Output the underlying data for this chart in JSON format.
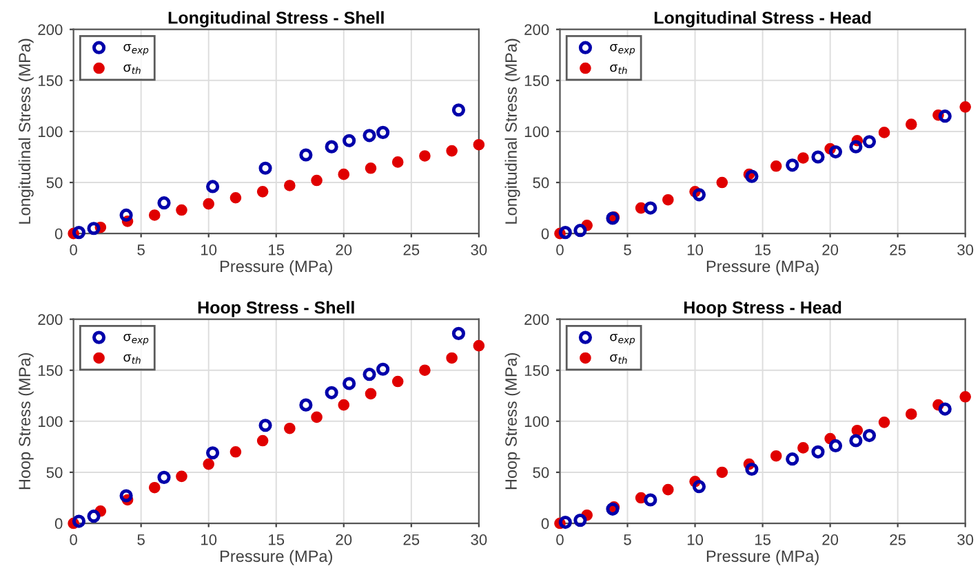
{
  "chart_data": [
    {
      "type": "scatter",
      "title": "Longitudinal Stress - Shell",
      "xlabel": "Pressure (MPa)",
      "ylabel": "Longitudinal Stress (MPa)",
      "xlim": [
        0,
        30
      ],
      "ylim": [
        0,
        200
      ],
      "xticks": [
        0,
        5,
        10,
        15,
        20,
        25,
        30
      ],
      "yticks": [
        0,
        50,
        100,
        150,
        200
      ],
      "grid": true,
      "legend": "top left",
      "marker": "circle",
      "series": [
        {
          "name": "σ$_{exp}$",
          "color": "#0000aa",
          "x": [
            0.4,
            1.5,
            3.9,
            6.7,
            10.3,
            14.2,
            17.2,
            19.1,
            20.4,
            21.9,
            22.9,
            28.5
          ],
          "values": [
            1,
            5,
            18,
            30,
            46,
            64,
            77,
            85,
            91,
            96,
            99,
            121
          ]
        },
        {
          "name": "σ$_{th}$",
          "color": "#e00000",
          "x": [
            0,
            2,
            4,
            6,
            8,
            10,
            12,
            14,
            16,
            18,
            20,
            22,
            24,
            26,
            28,
            30
          ],
          "values": [
            0,
            6,
            12,
            18,
            23,
            29,
            35,
            41,
            47,
            52,
            58,
            64,
            70,
            76,
            81,
            87
          ]
        }
      ]
    },
    {
      "type": "scatter",
      "title": "Longitudinal Stress - Head",
      "xlabel": "Pressure (MPa)",
      "ylabel": "Longitudinal Stress (MPa)",
      "xlim": [
        0,
        30
      ],
      "ylim": [
        0,
        200
      ],
      "xticks": [
        0,
        5,
        10,
        15,
        20,
        25,
        30
      ],
      "yticks": [
        0,
        50,
        100,
        150,
        200
      ],
      "grid": true,
      "legend": "top left",
      "marker": "circle",
      "series": [
        {
          "name": "σ$_{exp}$",
          "color": "#0000aa",
          "x": [
            0.4,
            1.5,
            3.9,
            6.7,
            10.3,
            14.2,
            17.2,
            19.1,
            20.4,
            21.9,
            22.9,
            28.5
          ],
          "values": [
            1,
            3,
            15,
            25,
            38,
            56,
            67,
            75,
            80,
            85,
            90,
            115
          ]
        },
        {
          "name": "σ$_{th}$",
          "color": "#e00000",
          "x": [
            0,
            2,
            4,
            6,
            8,
            10,
            12,
            14,
            16,
            18,
            20,
            22,
            24,
            26,
            28,
            30
          ],
          "values": [
            0,
            8,
            16,
            25,
            33,
            41,
            50,
            58,
            66,
            74,
            83,
            91,
            99,
            107,
            116,
            124
          ]
        }
      ]
    },
    {
      "type": "scatter",
      "title": "Hoop Stress - Shell",
      "xlabel": "Pressure (MPa)",
      "ylabel": "Hoop Stress (MPa)",
      "xlim": [
        0,
        30
      ],
      "ylim": [
        0,
        200
      ],
      "xticks": [
        0,
        5,
        10,
        15,
        20,
        25,
        30
      ],
      "yticks": [
        0,
        50,
        100,
        150,
        200
      ],
      "grid": true,
      "legend": "top left",
      "marker": "circle",
      "series": [
        {
          "name": "σ$_{exp}$",
          "color": "#0000aa",
          "x": [
            0.4,
            1.5,
            3.9,
            6.7,
            10.3,
            14.2,
            17.2,
            19.1,
            20.4,
            21.9,
            22.9,
            28.5
          ],
          "values": [
            2,
            7,
            27,
            45,
            69,
            96,
            116,
            128,
            137,
            146,
            151,
            186
          ]
        },
        {
          "name": "σ$_{th}$",
          "color": "#e00000",
          "x": [
            0,
            2,
            4,
            6,
            8,
            10,
            12,
            14,
            16,
            18,
            20,
            22,
            24,
            26,
            28,
            30
          ],
          "values": [
            0,
            12,
            23,
            35,
            46,
            58,
            70,
            81,
            93,
            104,
            116,
            127,
            139,
            150,
            162,
            174
          ]
        }
      ]
    },
    {
      "type": "scatter",
      "title": "Hoop Stress - Head",
      "xlabel": "Pressure (MPa)",
      "ylabel": "Hoop Stress (MPa)",
      "xlim": [
        0,
        30
      ],
      "ylim": [
        0,
        200
      ],
      "xticks": [
        0,
        5,
        10,
        15,
        20,
        25,
        30
      ],
      "yticks": [
        0,
        50,
        100,
        150,
        200
      ],
      "grid": true,
      "legend": "top left",
      "marker": "circle",
      "series": [
        {
          "name": "σ$_{exp}$",
          "color": "#0000aa",
          "x": [
            0.4,
            1.5,
            3.9,
            6.7,
            10.3,
            14.2,
            17.2,
            19.1,
            20.4,
            21.9,
            22.9,
            28.5
          ],
          "values": [
            1,
            3,
            14,
            23,
            36,
            53,
            63,
            70,
            76,
            81,
            86,
            112
          ]
        },
        {
          "name": "σ$_{th}$",
          "color": "#e00000",
          "x": [
            0,
            2,
            4,
            6,
            8,
            10,
            12,
            14,
            16,
            18,
            20,
            22,
            24,
            26,
            28,
            30
          ],
          "values": [
            0,
            8,
            16,
            25,
            33,
            41,
            50,
            58,
            66,
            74,
            83,
            91,
            99,
            107,
            116,
            124
          ]
        }
      ]
    }
  ]
}
